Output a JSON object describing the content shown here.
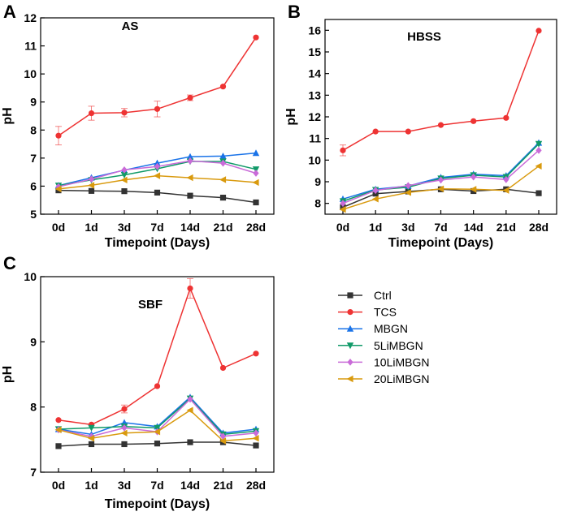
{
  "series_style": [
    {
      "name": "Ctrl",
      "color": "#333333",
      "marker": "square"
    },
    {
      "name": "TCS",
      "color": "#ee3333",
      "marker": "circle"
    },
    {
      "name": "MBGN",
      "color": "#1a73e8",
      "marker": "triangle-up"
    },
    {
      "name": "5LiMBGN",
      "color": "#109a68",
      "marker": "triangle-down"
    },
    {
      "name": "10LiMBGN",
      "color": "#c96bd8",
      "marker": "diamond"
    },
    {
      "name": "20LiMBGN",
      "color": "#d99a0e",
      "marker": "triangle-left"
    }
  ],
  "chart_data": [
    {
      "panel": "A",
      "type": "line",
      "title": "AS",
      "xlabel": "Timepoint (Days)",
      "ylabel": "pH",
      "categories": [
        "0d",
        "1d",
        "3d",
        "7d",
        "14d",
        "21d",
        "28d"
      ],
      "ylim": [
        5,
        12
      ],
      "yticks": [
        5,
        6,
        7,
        8,
        9,
        10,
        11,
        12
      ],
      "series": [
        {
          "name": "Ctrl",
          "values": [
            5.85,
            5.83,
            5.82,
            5.77,
            5.66,
            5.59,
            5.42
          ]
        },
        {
          "name": "TCS",
          "values": [
            7.8,
            8.6,
            8.62,
            8.75,
            9.15,
            9.55,
            11.3
          ],
          "errors": [
            0.33,
            0.25,
            0.15,
            0.28,
            0.1,
            0,
            0
          ]
        },
        {
          "name": "MBGN",
          "values": [
            6.02,
            6.3,
            6.57,
            6.82,
            7.05,
            7.07,
            7.18
          ]
        },
        {
          "name": "5LiMBGN",
          "values": [
            6.02,
            6.22,
            6.4,
            6.62,
            6.88,
            6.88,
            6.6
          ]
        },
        {
          "name": "10LiMBGN",
          "values": [
            5.98,
            6.25,
            6.58,
            6.7,
            6.9,
            6.82,
            6.46
          ]
        },
        {
          "name": "20LiMBGN",
          "values": [
            5.9,
            6.03,
            6.22,
            6.37,
            6.3,
            6.23,
            6.13
          ]
        }
      ]
    },
    {
      "panel": "B",
      "type": "line",
      "title": "HBSS",
      "xlabel": "Timepoint (Days)",
      "ylabel": "pH",
      "categories": [
        "0d",
        "1d",
        "3d",
        "7d",
        "14d",
        "21d",
        "28d"
      ],
      "ylim": [
        7.5,
        16.5
      ],
      "yticks": [
        8,
        9,
        10,
        11,
        12,
        13,
        14,
        15,
        16
      ],
      "series": [
        {
          "name": "Ctrl",
          "values": [
            7.82,
            8.45,
            8.55,
            8.65,
            8.57,
            8.65,
            8.47
          ]
        },
        {
          "name": "TCS",
          "values": [
            10.45,
            11.32,
            11.32,
            11.62,
            11.8,
            11.95,
            15.98
          ],
          "errors": [
            0.25,
            0,
            0,
            0,
            0,
            0,
            0
          ]
        },
        {
          "name": "MBGN",
          "values": [
            8.2,
            8.65,
            8.8,
            9.2,
            9.35,
            9.28,
            10.8
          ]
        },
        {
          "name": "5LiMBGN",
          "values": [
            8.1,
            8.62,
            8.75,
            9.15,
            9.3,
            9.22,
            10.75
          ]
        },
        {
          "name": "10LiMBGN",
          "values": [
            8.0,
            8.6,
            8.82,
            9.08,
            9.22,
            9.1,
            10.45
          ]
        },
        {
          "name": "20LiMBGN",
          "values": [
            7.72,
            8.2,
            8.5,
            8.67,
            8.65,
            8.6,
            9.72
          ]
        }
      ]
    },
    {
      "panel": "C",
      "type": "line",
      "title": "SBF",
      "xlabel": "Timepoint (Days)",
      "ylabel": "pH",
      "categories": [
        "0d",
        "1d",
        "3d",
        "7d",
        "14d",
        "21d",
        "28d"
      ],
      "ylim": [
        7,
        10
      ],
      "yticks": [
        7,
        8,
        9,
        10
      ],
      "series": [
        {
          "name": "Ctrl",
          "values": [
            7.4,
            7.43,
            7.43,
            7.44,
            7.46,
            7.46,
            7.41
          ]
        },
        {
          "name": "TCS",
          "values": [
            7.8,
            7.73,
            7.97,
            8.32,
            9.82,
            8.6,
            8.82
          ],
          "errors": [
            0,
            0,
            0.06,
            0,
            0.15,
            0,
            0
          ]
        },
        {
          "name": "MBGN",
          "values": [
            7.66,
            7.58,
            7.76,
            7.7,
            8.15,
            7.6,
            7.66
          ]
        },
        {
          "name": "5LiMBGN",
          "values": [
            7.66,
            7.68,
            7.7,
            7.68,
            8.13,
            7.58,
            7.63
          ]
        },
        {
          "name": "10LiMBGN",
          "values": [
            7.65,
            7.55,
            7.68,
            7.62,
            8.12,
            7.55,
            7.6
          ]
        },
        {
          "name": "20LiMBGN",
          "values": [
            7.65,
            7.52,
            7.6,
            7.62,
            7.95,
            7.48,
            7.52
          ]
        }
      ]
    }
  ]
}
